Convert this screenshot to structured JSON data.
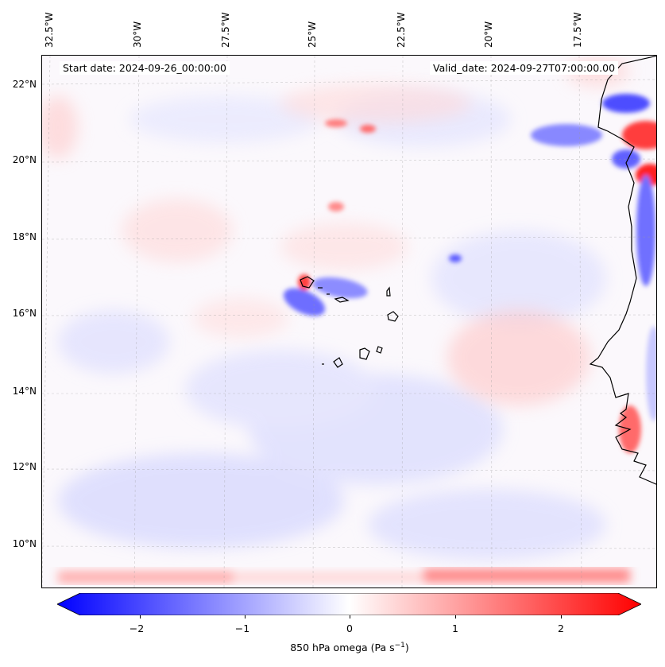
{
  "map": {
    "lon_labels": [
      "32.5°W",
      "30°W",
      "27.5°W",
      "25°W",
      "22.5°W",
      "20°W",
      "17.5°W"
    ],
    "lat_labels": [
      "22°N",
      "20°N",
      "18°N",
      "16°N",
      "14°N",
      "12°N",
      "10°N"
    ],
    "start_date": "Start date: 2024-09-26_00:00:00",
    "valid_date": "Valid_date: 2024-09-27T07:00:00.00",
    "colors": {
      "negative": "#0000ff",
      "zero": "#ffffff",
      "positive": "#ff0000",
      "coast": "#000000"
    }
  },
  "colorbar": {
    "ticks": [
      "−2",
      "−1",
      "0",
      "1",
      "2"
    ],
    "label": "850 hPa omega (Pa s",
    "label_sup": "−1",
    "label_end": ")",
    "range": [
      -2.6,
      2.6
    ]
  }
}
